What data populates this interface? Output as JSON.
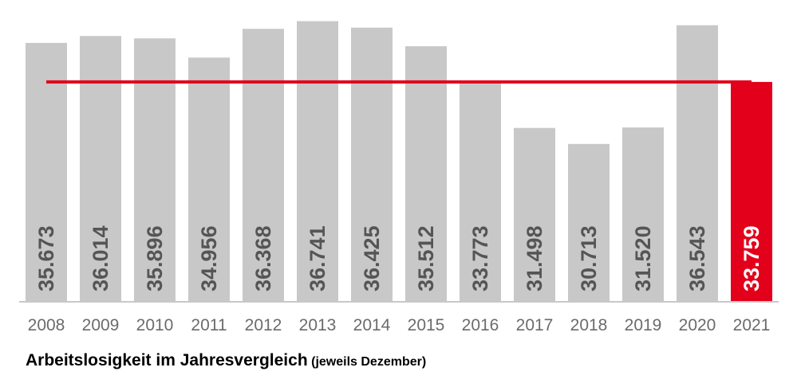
{
  "chart_data": {
    "type": "bar",
    "categories": [
      "2008",
      "2009",
      "2010",
      "2011",
      "2012",
      "2013",
      "2014",
      "2015",
      "2016",
      "2017",
      "2018",
      "2019",
      "2020",
      "2021"
    ],
    "values": [
      35673,
      36014,
      35896,
      34956,
      36368,
      36741,
      36425,
      35512,
      33773,
      31498,
      30713,
      31520,
      36543,
      33759
    ],
    "value_labels": [
      "35.673",
      "36.014",
      "35.896",
      "34.956",
      "36.368",
      "36.741",
      "36.425",
      "35.512",
      "33.773",
      "31.498",
      "30.713",
      "31.520",
      "36.543",
      "33.759"
    ],
    "reference_line": {
      "value": 33759,
      "from_category": "2008",
      "to_category": "2021",
      "color": "#e2001a"
    },
    "highlight_category": "2021",
    "title": "Arbeitslosigkeit im Jahresvergleich",
    "subtitle": "(jeweils Dezember)",
    "xlabel": "",
    "ylabel": "",
    "ylim": [
      23000,
      37000
    ],
    "grid": false,
    "legend": "none",
    "colors": {
      "bar": "#c8c8c8",
      "highlight": "#e2001a",
      "axis": "#c8c8c8",
      "label": "#555555",
      "tick": "#6b6b6b"
    }
  }
}
